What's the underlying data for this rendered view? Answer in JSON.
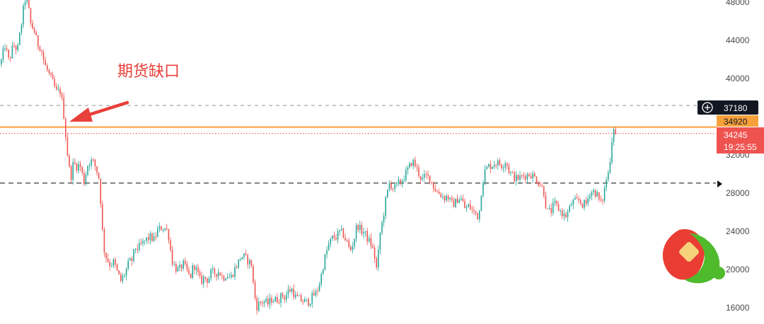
{
  "chart_data": {
    "type": "candlestick",
    "title": "",
    "xlabel": "",
    "ylabel": "",
    "ylim": [
      15300,
      49000
    ],
    "y_ticks": [
      16000,
      20000,
      24000,
      28000,
      32000,
      36000,
      40000,
      44000,
      48000
    ],
    "y_tick_labels": [
      "16000",
      "20000",
      "24000",
      "28000",
      "32000",
      "",
      "40000",
      "44000",
      "48000"
    ],
    "colors": {
      "up": "#26a69a",
      "down": "#ef5350",
      "accent": "#f7a13b"
    },
    "horizontal_lines": [
      {
        "name": "upper-reference",
        "value": 37180,
        "style": "dashed",
        "color": "#9e9e9e"
      },
      {
        "name": "gap-level",
        "value": 34920,
        "style": "solid",
        "color": "#f7a13b"
      },
      {
        "name": "last-price",
        "value": 34245,
        "style": "dotted",
        "color": "#ef5350"
      },
      {
        "name": "support",
        "value": 29050,
        "style": "dashed",
        "color": "#222222"
      }
    ],
    "price_tags": {
      "reference": {
        "value": "37180",
        "bg": "#131722",
        "fg": "#ffffff"
      },
      "gap": {
        "value": "34920",
        "bg": "#f7a13b",
        "fg": "#131722"
      },
      "last": {
        "value": "34245",
        "countdown": "19:25:55",
        "bg": "#ef5350",
        "fg": "#ffffff"
      }
    },
    "annotation": {
      "text": "期货缺口"
    },
    "path": [
      [
        0,
        41500
      ],
      [
        6,
        43500
      ],
      [
        12,
        41800
      ],
      [
        18,
        43500
      ],
      [
        24,
        43000
      ],
      [
        31,
        46500
      ],
      [
        34,
        48300
      ],
      [
        38,
        48100
      ],
      [
        43,
        45500
      ],
      [
        47,
        45200
      ],
      [
        52,
        43600
      ],
      [
        57,
        43300
      ],
      [
        62,
        41500
      ],
      [
        67,
        40700
      ],
      [
        73,
        39700
      ],
      [
        79,
        38600
      ],
      [
        84,
        38700
      ],
      [
        88,
        37300
      ],
      [
        91,
        34850
      ],
      [
        93,
        33300
      ],
      [
        95,
        31800
      ],
      [
        99,
        29500
      ],
      [
        103,
        31200
      ],
      [
        107,
        30800
      ],
      [
        112,
        31000
      ],
      [
        118,
        29200
      ],
      [
        124,
        31200
      ],
      [
        130,
        31400
      ],
      [
        135,
        30600
      ],
      [
        140,
        29300
      ],
      [
        143,
        24800
      ],
      [
        147,
        21700
      ],
      [
        150,
        21200
      ],
      [
        155,
        20500
      ],
      [
        160,
        20800
      ],
      [
        165,
        19700
      ],
      [
        170,
        18800
      ],
      [
        176,
        19600
      ],
      [
        181,
        20700
      ],
      [
        186,
        21000
      ],
      [
        190,
        22300
      ],
      [
        194,
        22200
      ],
      [
        198,
        22500
      ],
      [
        203,
        22900
      ],
      [
        207,
        23200
      ],
      [
        212,
        23400
      ],
      [
        217,
        23100
      ],
      [
        222,
        24100
      ],
      [
        228,
        24400
      ],
      [
        234,
        24300
      ],
      [
        238,
        23400
      ],
      [
        242,
        21000
      ],
      [
        247,
        20200
      ],
      [
        252,
        19900
      ],
      [
        258,
        20600
      ],
      [
        263,
        19900
      ],
      [
        268,
        19100
      ],
      [
        273,
        20600
      ],
      [
        278,
        19700
      ],
      [
        283,
        18700
      ],
      [
        288,
        19200
      ],
      [
        293,
        18900
      ],
      [
        298,
        19700
      ],
      [
        304,
        19600
      ],
      [
        309,
        19800
      ],
      [
        314,
        19100
      ],
      [
        319,
        19500
      ],
      [
        325,
        19100
      ],
      [
        330,
        19900
      ],
      [
        335,
        20600
      ],
      [
        340,
        21400
      ],
      [
        345,
        21300
      ],
      [
        350,
        20900
      ],
      [
        355,
        20500
      ],
      [
        358,
        17800
      ],
      [
        362,
        16100
      ],
      [
        366,
        16500
      ],
      [
        372,
        16700
      ],
      [
        378,
        16400
      ],
      [
        383,
        16900
      ],
      [
        388,
        16800
      ],
      [
        393,
        16900
      ],
      [
        398,
        17300
      ],
      [
        402,
        17100
      ],
      [
        407,
        17800
      ],
      [
        412,
        17900
      ],
      [
        417,
        17100
      ],
      [
        422,
        16900
      ],
      [
        427,
        16700
      ],
      [
        432,
        16600
      ],
      [
        437,
        16700
      ],
      [
        442,
        17300
      ],
      [
        447,
        17600
      ],
      [
        452,
        18900
      ],
      [
        456,
        20400
      ],
      [
        460,
        21700
      ],
      [
        465,
        22800
      ],
      [
        470,
        23400
      ],
      [
        475,
        23400
      ],
      [
        480,
        24000
      ],
      [
        485,
        23600
      ],
      [
        490,
        22800
      ],
      [
        494,
        21900
      ],
      [
        499,
        22900
      ],
      [
        504,
        24800
      ],
      [
        509,
        24100
      ],
      [
        514,
        23900
      ],
      [
        519,
        23200
      ],
      [
        524,
        22600
      ],
      [
        528,
        21700
      ],
      [
        532,
        19800
      ],
      [
        536,
        23600
      ],
      [
        540,
        25100
      ],
      [
        545,
        27500
      ],
      [
        550,
        29100
      ],
      [
        556,
        28400
      ],
      [
        561,
        28900
      ],
      [
        566,
        29200
      ],
      [
        571,
        29800
      ],
      [
        577,
        30600
      ],
      [
        582,
        31400
      ],
      [
        587,
        30800
      ],
      [
        592,
        29900
      ],
      [
        596,
        29400
      ],
      [
        601,
        29800
      ],
      [
        607,
        29600
      ],
      [
        612,
        28700
      ],
      [
        617,
        28100
      ],
      [
        622,
        27900
      ],
      [
        627,
        27500
      ],
      [
        632,
        27700
      ],
      [
        637,
        26900
      ],
      [
        642,
        26900
      ],
      [
        647,
        27500
      ],
      [
        652,
        27300
      ],
      [
        657,
        26300
      ],
      [
        662,
        26700
      ],
      [
        667,
        26100
      ],
      [
        672,
        25900
      ],
      [
        676,
        25400
      ],
      [
        680,
        28500
      ],
      [
        684,
        30200
      ],
      [
        689,
        30800
      ],
      [
        694,
        30900
      ],
      [
        699,
        31200
      ],
      [
        704,
        31100
      ],
      [
        709,
        30900
      ],
      [
        714,
        31400
      ],
      [
        719,
        30300
      ],
      [
        724,
        29800
      ],
      [
        729,
        29500
      ],
      [
        734,
        29600
      ],
      [
        739,
        29800
      ],
      [
        744,
        29900
      ],
      [
        749,
        30000
      ],
      [
        754,
        29700
      ],
      [
        759,
        29300
      ],
      [
        764,
        28800
      ],
      [
        768,
        28100
      ],
      [
        772,
        26100
      ],
      [
        778,
        26100
      ],
      [
        783,
        26900
      ],
      [
        788,
        26400
      ],
      [
        793,
        26000
      ],
      [
        798,
        25500
      ],
      [
        803,
        26100
      ],
      [
        808,
        27100
      ],
      [
        813,
        27100
      ],
      [
        818,
        27200
      ],
      [
        823,
        26800
      ],
      [
        828,
        26900
      ],
      [
        833,
        28100
      ],
      [
        838,
        28200
      ],
      [
        843,
        27900
      ],
      [
        848,
        26800
      ],
      [
        852,
        27600
      ],
      [
        856,
        29400
      ],
      [
        860,
        30300
      ],
      [
        863,
        32800
      ],
      [
        866,
        34800
      ],
      [
        869,
        35400
      ],
      [
        872,
        34245
      ]
    ]
  }
}
